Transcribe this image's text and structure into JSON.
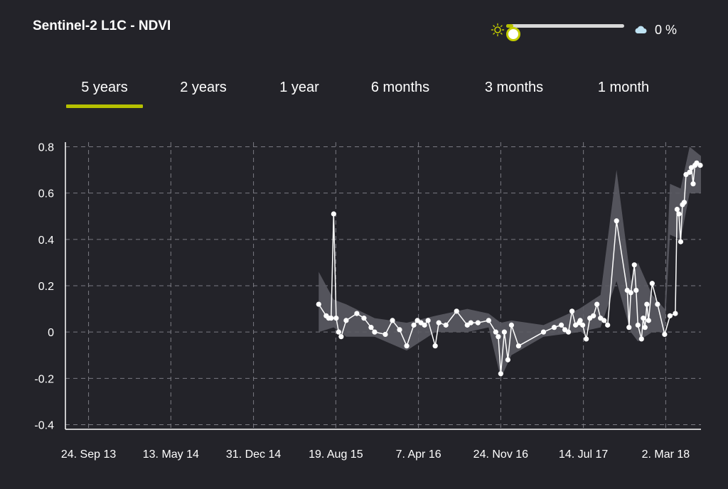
{
  "header": {
    "title": "Sentinel-2 L1C - NDVI"
  },
  "cloud_filter": {
    "value_label": "0 %",
    "value_percent": 0
  },
  "tabs": [
    {
      "label": "5 years",
      "active": true
    },
    {
      "label": "2 years",
      "active": false
    },
    {
      "label": "1 year",
      "active": false
    },
    {
      "label": "6 months",
      "active": false
    },
    {
      "label": "3 months",
      "active": false
    },
    {
      "label": "1 month",
      "active": false
    }
  ],
  "colors": {
    "background": "#232329",
    "accent": "#b5c000",
    "line": "#ffffff",
    "band": "#5a5a62",
    "grid": "#7a7a82",
    "cloud": "#bfe3f3"
  },
  "chart_data": {
    "type": "line",
    "title": "",
    "xlabel": "",
    "ylabel": "",
    "ylim": [
      -0.42,
      0.82
    ],
    "y_ticks": [
      -0.4,
      -0.2,
      0,
      0.2,
      0.4,
      0.6,
      0.8
    ],
    "y_tick_labels": [
      "-0.4",
      "-0.2",
      "0",
      "0.2",
      "0.4",
      "0.6",
      "0.8"
    ],
    "xlim": [
      "2013-07-21",
      "2018-06-09"
    ],
    "x_ticks": [
      "2013-09-24",
      "2014-05-13",
      "2014-12-31",
      "2015-08-19",
      "2016-04-07",
      "2016-11-24",
      "2017-07-14",
      "2018-03-02"
    ],
    "x_tick_labels": [
      "24. Sep 13",
      "13. May 14",
      "31. Dec 14",
      "19. Aug 15",
      "7. Apr 16",
      "24. Nov 16",
      "14. Jul 17",
      "2. Mar 18"
    ],
    "grid": true,
    "series": [
      {
        "x": [
          "2015-07-02",
          "2015-07-23",
          "2015-07-30",
          "2015-08-06",
          "2015-08-13",
          "2015-08-20",
          "2015-08-27",
          "2015-09-03",
          "2015-09-17",
          "2015-10-17",
          "2015-11-06",
          "2015-11-26",
          "2015-12-06",
          "2016-01-05",
          "2016-01-25",
          "2016-02-14",
          "2016-03-05",
          "2016-03-25",
          "2016-04-04",
          "2016-04-14",
          "2016-04-24",
          "2016-05-04",
          "2016-05-24",
          "2016-06-03",
          "2016-06-23",
          "2016-07-23",
          "2016-08-22",
          "2016-09-01",
          "2016-09-21",
          "2016-10-21",
          "2016-11-10",
          "2016-11-17",
          "2016-11-24",
          "2016-12-04",
          "2016-12-14",
          "2016-12-24",
          "2017-01-13",
          "2017-03-24",
          "2017-04-23",
          "2017-05-13",
          "2017-05-23",
          "2017-06-02",
          "2017-06-12",
          "2017-06-22",
          "2017-07-02",
          "2017-07-05",
          "2017-07-12",
          "2017-07-22",
          "2017-08-01",
          "2017-08-11",
          "2017-08-21",
          "2017-08-31",
          "2017-09-10",
          "2017-09-20",
          "2017-10-15",
          "2017-11-14",
          "2017-11-19",
          "2017-11-24",
          "2017-12-04",
          "2017-12-09",
          "2017-12-14",
          "2017-12-24",
          "2017-12-29",
          "2018-01-03",
          "2018-01-08",
          "2018-01-13",
          "2018-01-23",
          "2018-02-07",
          "2018-02-27",
          "2018-03-14",
          "2018-03-29",
          "2018-04-03",
          "2018-04-08",
          "2018-04-13",
          "2018-04-18",
          "2018-04-23",
          "2018-04-28",
          "2018-05-08",
          "2018-05-13",
          "2018-05-18",
          "2018-05-23",
          "2018-05-28",
          "2018-06-07"
        ],
        "values": [
          0.12,
          0.07,
          0.06,
          0.06,
          0.51,
          0.06,
          0.0,
          -0.02,
          0.05,
          0.08,
          0.06,
          0.02,
          0.0,
          -0.01,
          0.05,
          0.01,
          -0.06,
          0.03,
          0.05,
          0.04,
          0.03,
          0.05,
          -0.06,
          0.04,
          0.03,
          0.09,
          0.03,
          0.04,
          0.04,
          0.05,
          0.0,
          -0.02,
          -0.18,
          0.0,
          -0.12,
          0.03,
          -0.06,
          0.0,
          0.02,
          0.03,
          0.01,
          0.0,
          0.09,
          0.03,
          0.04,
          0.05,
          0.03,
          -0.03,
          0.06,
          0.07,
          0.12,
          0.06,
          0.05,
          0.03,
          0.48,
          0.18,
          0.02,
          0.17,
          0.29,
          0.18,
          0.03,
          -0.03,
          0.06,
          0.02,
          0.12,
          0.05,
          0.21,
          0.12,
          -0.01,
          0.07,
          0.08,
          0.53,
          0.51,
          0.39,
          0.55,
          0.56,
          0.68,
          0.69,
          0.71,
          0.64,
          0.72,
          0.73,
          0.72
        ]
      }
    ],
    "band": {
      "x": [
        "2015-07-02",
        "2015-08-13",
        "2015-09-17",
        "2015-12-06",
        "2016-03-05",
        "2016-05-24",
        "2016-08-22",
        "2016-10-21",
        "2016-11-24",
        "2016-12-24",
        "2017-03-24",
        "2017-07-02",
        "2017-08-31",
        "2017-10-15",
        "2017-11-24",
        "2017-12-14",
        "2018-01-23",
        "2018-02-27",
        "2018-03-14",
        "2018-04-13",
        "2018-05-08",
        "2018-06-09"
      ],
      "upper": [
        0.26,
        0.14,
        0.12,
        0.06,
        0.04,
        0.07,
        0.1,
        0.08,
        0.04,
        0.05,
        0.03,
        0.1,
        0.16,
        0.7,
        0.22,
        0.3,
        0.16,
        0.1,
        0.64,
        0.62,
        0.8,
        0.76
      ],
      "lower": [
        0.0,
        0.02,
        -0.02,
        -0.02,
        -0.08,
        0.0,
        0.0,
        0.02,
        -0.2,
        -0.1,
        -0.02,
        0.0,
        0.02,
        0.22,
        0.0,
        -0.04,
        0.0,
        0.0,
        0.42,
        0.4,
        0.6,
        0.6
      ]
    }
  }
}
